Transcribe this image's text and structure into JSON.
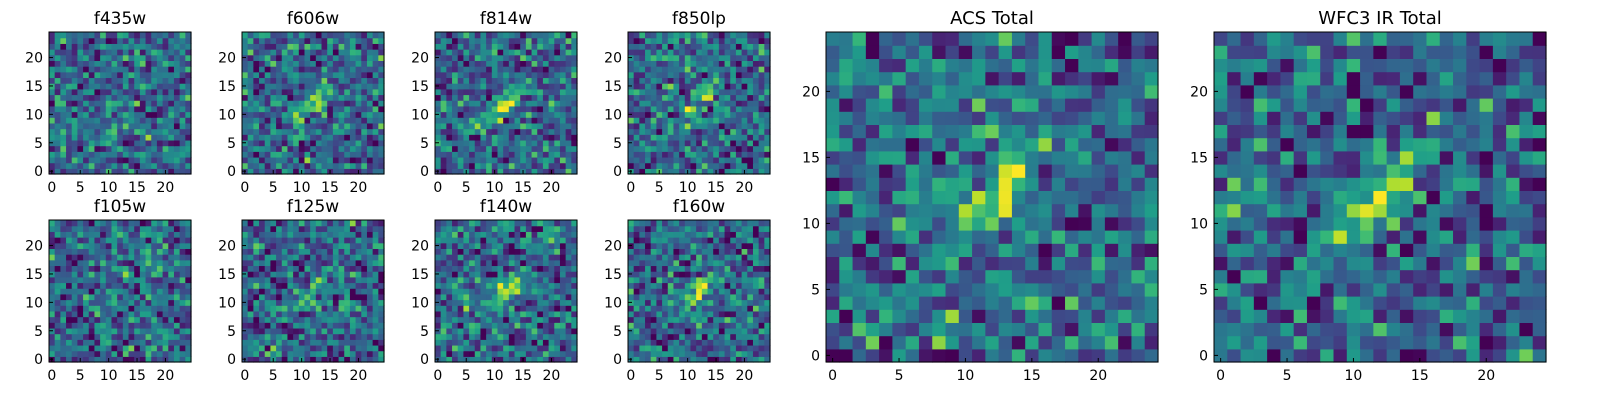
{
  "chart_data": [
    {
      "type": "heatmap",
      "title": "f435w",
      "grid_size": 25,
      "ticks": [
        0,
        5,
        10,
        15,
        20
      ],
      "xlim": [
        0,
        24
      ],
      "ylim": [
        0,
        24
      ],
      "colormap": "viridis",
      "grid": false,
      "seed": 11,
      "peak_strength": 0.1
    },
    {
      "type": "heatmap",
      "title": "f606w",
      "grid_size": 25,
      "ticks": [
        0,
        5,
        10,
        15,
        20
      ],
      "xlim": [
        0,
        24
      ],
      "ylim": [
        0,
        24
      ],
      "colormap": "viridis",
      "grid": false,
      "seed": 23,
      "peak_strength": 0.35
    },
    {
      "type": "heatmap",
      "title": "f814w",
      "grid_size": 25,
      "ticks": [
        0,
        5,
        10,
        15,
        20
      ],
      "xlim": [
        0,
        24
      ],
      "ylim": [
        0,
        24
      ],
      "colormap": "viridis",
      "grid": false,
      "seed": 37,
      "peak_strength": 0.4
    },
    {
      "type": "heatmap",
      "title": "f850lp",
      "grid_size": 25,
      "ticks": [
        0,
        5,
        10,
        15,
        20
      ],
      "xlim": [
        0,
        24
      ],
      "ylim": [
        0,
        24
      ],
      "colormap": "viridis",
      "grid": false,
      "seed": 41,
      "peak_strength": 0.35
    },
    {
      "type": "heatmap",
      "title": "f105w",
      "grid_size": 25,
      "ticks": [
        0,
        5,
        10,
        15,
        20
      ],
      "xlim": [
        0,
        24
      ],
      "ylim": [
        0,
        24
      ],
      "colormap": "viridis",
      "grid": false,
      "seed": 53,
      "peak_strength": 0.15
    },
    {
      "type": "heatmap",
      "title": "f125w",
      "grid_size": 25,
      "ticks": [
        0,
        5,
        10,
        15,
        20
      ],
      "xlim": [
        0,
        24
      ],
      "ylim": [
        0,
        24
      ],
      "colormap": "viridis",
      "grid": false,
      "seed": 67,
      "peak_strength": 0.35
    },
    {
      "type": "heatmap",
      "title": "f140w",
      "grid_size": 25,
      "ticks": [
        0,
        5,
        10,
        15,
        20
      ],
      "xlim": [
        0,
        24
      ],
      "ylim": [
        0,
        24
      ],
      "colormap": "viridis",
      "grid": false,
      "seed": 71,
      "peak_strength": 0.45
    },
    {
      "type": "heatmap",
      "title": "f160w",
      "grid_size": 25,
      "ticks": [
        0,
        5,
        10,
        15,
        20
      ],
      "xlim": [
        0,
        24
      ],
      "ylim": [
        0,
        24
      ],
      "colormap": "viridis",
      "grid": false,
      "seed": 83,
      "peak_strength": 0.45
    },
    {
      "type": "heatmap",
      "title": "ACS Total",
      "grid_size": 25,
      "ticks": [
        0,
        5,
        10,
        15,
        20
      ],
      "xlim": [
        0,
        24
      ],
      "ylim": [
        0,
        24
      ],
      "colormap": "viridis",
      "grid": false,
      "seed": 97,
      "peak_strength": 0.55
    },
    {
      "type": "heatmap",
      "title": "WFC3 IR Total",
      "grid_size": 25,
      "ticks": [
        0,
        5,
        10,
        15,
        20
      ],
      "xlim": [
        0,
        24
      ],
      "ylim": [
        0,
        24
      ],
      "colormap": "viridis",
      "grid": false,
      "seed": 101,
      "peak_strength": 0.55
    }
  ]
}
